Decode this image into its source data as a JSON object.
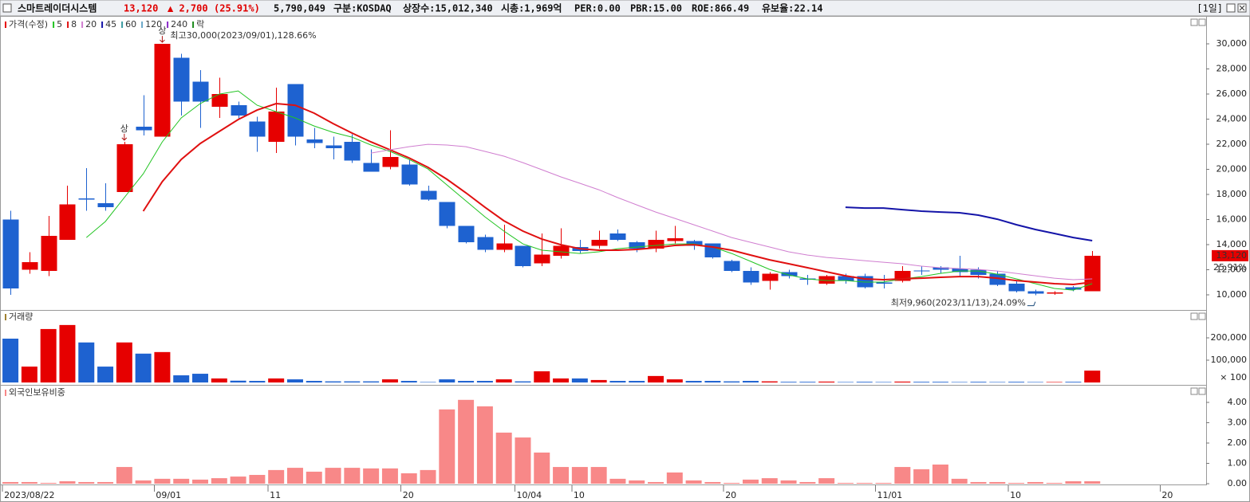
{
  "header": {
    "name": "스마트레이더시스템",
    "price": "13,120",
    "change": "▲ 2,700",
    "change_pct": "(25.91%)",
    "volume": "5,790,049",
    "market": "구분:KOSDAQ",
    "listed": "상장수:15,012,340",
    "cap": "시총:1,969억",
    "per": "PER:0.00",
    "pbr": "PBR:15.00",
    "roe": "ROE:866.49",
    "reserve": "유보율:22.14",
    "period": "[1일]"
  },
  "chart_data": [
    {
      "type": "candlestick",
      "name": "가격(수정)",
      "up_color": "#e60000",
      "down_color": "#1e62d0",
      "xlim": [
        -0.55,
        63
      ],
      "ylim": [
        8860,
        32100
      ],
      "yticks": [
        {
          "value": 10000,
          "label": "10,000"
        },
        {
          "value": 12000,
          "label": "12,000"
        },
        {
          "value": 14000,
          "label": "14,000"
        },
        {
          "value": 16000,
          "label": "16,000"
        },
        {
          "value": 18000,
          "label": "18,000"
        },
        {
          "value": 20000,
          "label": "20,000"
        },
        {
          "value": 22000,
          "label": "22,000"
        },
        {
          "value": 24000,
          "label": "24,000"
        },
        {
          "value": 26000,
          "label": "26,000"
        },
        {
          "value": 28000,
          "label": "28,000"
        },
        {
          "value": 30000,
          "label": "30,000"
        }
      ],
      "open": [
        16000,
        12000,
        11900,
        14400,
        17700,
        17300,
        18200,
        23400,
        22600,
        28900,
        27000,
        25000,
        25100,
        23800,
        22200,
        26800,
        22400,
        21900,
        22200,
        20500,
        20200,
        20400,
        18300,
        17400,
        15500,
        14600,
        13600,
        13900,
        12500,
        13100,
        13800,
        13900,
        14900,
        14200,
        13700,
        14300,
        14300,
        14100,
        12700,
        11900,
        11100,
        11800,
        11300,
        10900,
        11500,
        11500,
        11000,
        11100,
        11950,
        12200,
        12100,
        12000,
        11700,
        10900,
        10300,
        10100,
        10600,
        10300
      ],
      "high": [
        16700,
        13400,
        16300,
        18700,
        20100,
        18900,
        22200,
        25900,
        30000,
        29200,
        27900,
        27300,
        25400,
        24200,
        26500,
        26800,
        23300,
        22600,
        22800,
        21600,
        23100,
        20800,
        18700,
        17400,
        15500,
        14800,
        15600,
        13900,
        14900,
        15300,
        14400,
        15100,
        15200,
        14300,
        15100,
        15500,
        14400,
        14100,
        12800,
        12200,
        11800,
        12000,
        11600,
        11600,
        11700,
        11700,
        11600,
        12300,
        12300,
        12300,
        13100,
        12200,
        11900,
        11100,
        10400,
        10300,
        10700,
        13500
      ],
      "low": [
        10000,
        11700,
        11500,
        14400,
        16700,
        16700,
        18200,
        22700,
        22600,
        24300,
        23300,
        24100,
        24000,
        21400,
        21300,
        21900,
        21700,
        20800,
        20500,
        19800,
        20000,
        18700,
        17500,
        15300,
        14100,
        13400,
        13400,
        12200,
        12300,
        12900,
        13300,
        13700,
        14300,
        13400,
        13400,
        14100,
        13600,
        12900,
        11800,
        10800,
        10400,
        11300,
        10800,
        10800,
        10900,
        10500,
        10500,
        11000,
        11600,
        11700,
        11500,
        11300,
        10700,
        10200,
        9960,
        10000,
        10300,
        10300
      ],
      "close": [
        10500,
        12600,
        14700,
        17200,
        17600,
        17000,
        22000,
        23100,
        30000,
        25400,
        25400,
        26000,
        24300,
        22600,
        24600,
        22600,
        22100,
        21700,
        20700,
        19800,
        21000,
        18800,
        17600,
        15500,
        14200,
        13600,
        14100,
        12300,
        13200,
        13900,
        13500,
        14400,
        14400,
        13700,
        14400,
        14500,
        13900,
        13000,
        11900,
        11000,
        11700,
        11500,
        11200,
        11500,
        11100,
        10600,
        10900,
        11900,
        11900,
        12000,
        11800,
        11600,
        10800,
        10300,
        10100,
        10200,
        10420,
        13120
      ],
      "series": [
        {
          "name": "5",
          "color": "#22c422",
          "line_width": 1,
          "values": [
            null,
            null,
            null,
            null,
            14570,
            15840,
            17750,
            19650,
            22190,
            24100,
            25240,
            26000,
            26250,
            25110,
            24600,
            24100,
            23460,
            22950,
            22570,
            21940,
            21430,
            20790,
            20030,
            18760,
            17490,
            16220,
            15080,
            14060,
            13560,
            13430,
            13300,
            13430,
            13680,
            13810,
            13940,
            14060,
            14060,
            13810,
            13300,
            12670,
            12030,
            11590,
            11270,
            11140,
            11140,
            11020,
            11020,
            11270,
            11460,
            11710,
            11900,
            11900,
            11650,
            11270,
            10890,
            10510,
            10380,
            10890
          ]
        },
        {
          "name": "8",
          "color": "#e01010",
          "line_width": 2,
          "values": [
            null,
            null,
            null,
            null,
            null,
            null,
            null,
            16670,
            19020,
            20790,
            22060,
            23020,
            23970,
            24730,
            25240,
            25110,
            24480,
            23650,
            22890,
            22190,
            21560,
            20920,
            20160,
            19210,
            18130,
            16980,
            15900,
            15080,
            14440,
            14000,
            13680,
            13560,
            13560,
            13620,
            13750,
            13940,
            14000,
            13810,
            13560,
            13170,
            12790,
            12480,
            12160,
            11840,
            11520,
            11270,
            11210,
            11270,
            11330,
            11400,
            11460,
            11460,
            11330,
            11140,
            11020,
            10890,
            10830,
            11020
          ]
        },
        {
          "name": "20",
          "color": "#d07ed0",
          "line_width": 1,
          "values": [
            null,
            null,
            null,
            null,
            null,
            null,
            null,
            null,
            null,
            null,
            null,
            null,
            null,
            null,
            null,
            null,
            null,
            null,
            null,
            21300,
            21560,
            21810,
            22000,
            21940,
            21810,
            21430,
            21050,
            20540,
            19970,
            19400,
            18890,
            18380,
            17750,
            17170,
            16600,
            16100,
            15590,
            15080,
            14570,
            14190,
            13810,
            13430,
            13170,
            12980,
            12860,
            12730,
            12600,
            12480,
            12290,
            12160,
            12100,
            12030,
            11900,
            11710,
            11520,
            11330,
            11210,
            11270
          ]
        },
        {
          "name": "45",
          "color": "#1414a8",
          "line_width": 2,
          "values": [
            null,
            null,
            null,
            null,
            null,
            null,
            null,
            null,
            null,
            null,
            null,
            null,
            null,
            null,
            null,
            null,
            null,
            null,
            null,
            null,
            null,
            null,
            null,
            null,
            null,
            null,
            null,
            null,
            null,
            null,
            null,
            null,
            null,
            null,
            null,
            null,
            null,
            null,
            null,
            null,
            null,
            null,
            null,
            null,
            16980,
            16920,
            16920,
            16790,
            16670,
            16600,
            16540,
            16350,
            16030,
            15590,
            15210,
            14890,
            14570,
            14320
          ]
        }
      ],
      "extra_legend": [
        {
          "name": "60",
          "color": "#3a9aa0"
        },
        {
          "name": "120",
          "color": "#6aa8c8"
        },
        {
          "name": "240",
          "color": "#8a2ac8"
        },
        {
          "name": "락",
          "color": "#1a8a1a"
        }
      ],
      "annotations": [
        {
          "x": 8,
          "anchor": "high",
          "text": "최고30,000(2023/09/01),128.66%"
        },
        {
          "x": 54,
          "anchor": "low",
          "text": "최저9,960(2023/11/13),24.09%"
        },
        {
          "x": 6,
          "anchor": "mark",
          "text": "상"
        },
        {
          "x": 8,
          "anchor": "mark",
          "text": "상"
        }
      ],
      "last_change": "25.91%"
    },
    {
      "type": "bar",
      "name": "거래량",
      "color": "#a08030",
      "unit": "× 100",
      "ylim": [
        0,
        310000
      ],
      "yticks": [
        {
          "value": 100000,
          "label": "100,000"
        },
        {
          "value": 200000,
          "label": "200,000"
        }
      ],
      "values": [
        196000,
        71000,
        239000,
        257000,
        179000,
        71000,
        179000,
        129000,
        136000,
        32000,
        39000,
        18000,
        8000,
        7000,
        18000,
        14000,
        7000,
        5000,
        5000,
        5000,
        14000,
        7000,
        2000,
        14000,
        7000,
        7000,
        14000,
        5000,
        50000,
        18000,
        18000,
        11000,
        7000,
        7000,
        29000,
        14000,
        7000,
        7000,
        5000,
        7000,
        5000,
        3000,
        3000,
        4000,
        2000,
        3000,
        2000,
        4000,
        3000,
        3000,
        2000,
        3000,
        2000,
        3000,
        2000,
        2000,
        3000,
        53000
      ]
    },
    {
      "type": "bar",
      "name": "외국인보유비중",
      "color": "#f88888",
      "ylim": [
        0,
        4.7
      ],
      "yticks": [
        {
          "value": 0,
          "label": "0.00"
        },
        {
          "value": 1,
          "label": "1.00"
        },
        {
          "value": 2,
          "label": "2.00"
        },
        {
          "value": 3,
          "label": "3.00"
        },
        {
          "value": 4,
          "label": "4.00"
        }
      ],
      "values": [
        0.08,
        0.08,
        0.04,
        0.12,
        0.08,
        0.08,
        0.82,
        0.16,
        0.24,
        0.24,
        0.2,
        0.27,
        0.35,
        0.43,
        0.67,
        0.78,
        0.59,
        0.78,
        0.78,
        0.75,
        0.75,
        0.51,
        0.67,
        3.65,
        4.12,
        3.8,
        2.51,
        2.27,
        1.53,
        0.82,
        0.82,
        0.82,
        0.24,
        0.16,
        0.08,
        0.55,
        0.16,
        0.08,
        0.04,
        0.2,
        0.27,
        0.16,
        0.08,
        0.27,
        0.04,
        0.04,
        0.04,
        0.82,
        0.71,
        0.94,
        0.24,
        0.08,
        0.08,
        0.04,
        0.08,
        0.04,
        0.12,
        0.12
      ],
      "xticks": [
        {
          "value": 0,
          "label": "2023/08/22"
        },
        {
          "value": 8,
          "label": "09/01"
        },
        {
          "value": 14,
          "label": "11"
        },
        {
          "value": 21,
          "label": "20"
        },
        {
          "value": 27,
          "label": "10/04"
        },
        {
          "value": 30,
          "label": "10"
        },
        {
          "value": 38,
          "label": "20"
        },
        {
          "value": 46,
          "label": "11/01"
        },
        {
          "value": 53,
          "label": "10"
        },
        {
          "value": 61,
          "label": "20"
        }
      ]
    }
  ]
}
